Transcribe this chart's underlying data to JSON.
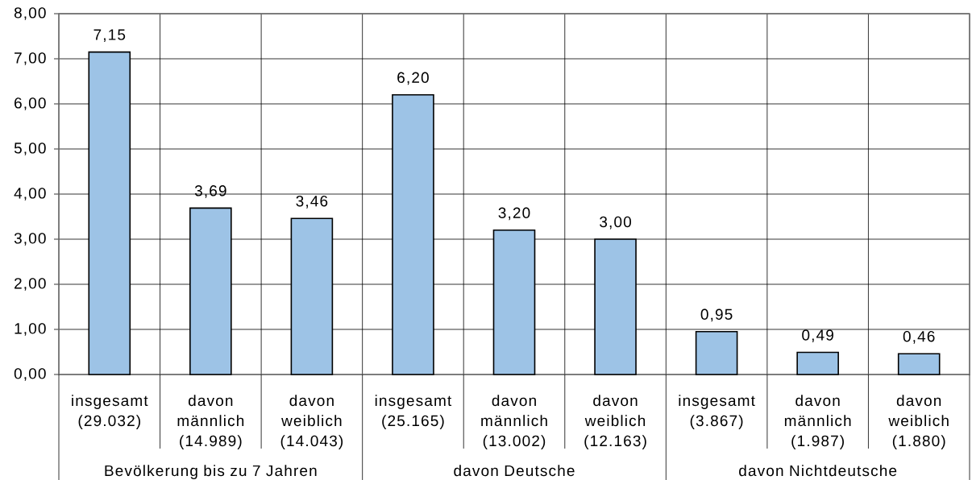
{
  "chart_data": {
    "type": "bar",
    "categories": [
      "insgesamt (29.032)",
      "davon männlich (14.989)",
      "davon weiblich (14.043)",
      "insgesamt (25.165)",
      "davon männlich (13.002)",
      "davon weiblich (12.163)",
      "insgesamt (3.867)",
      "davon männlich (1.987)",
      "davon weiblich (1.880)"
    ],
    "values": [
      7.15,
      3.69,
      3.46,
      6.2,
      3.2,
      3.0,
      0.95,
      0.49,
      0.46
    ],
    "value_labels": [
      "7,15",
      "3,69",
      "3,46",
      "6,20",
      "3,20",
      "3,00",
      "0,95",
      "0,49",
      "0,46"
    ],
    "color": "#9dc3e6",
    "ylim": [
      0,
      8
    ],
    "yticks": [
      {
        "value": 0,
        "label": "0,00"
      },
      {
        "value": 1,
        "label": "1,00"
      },
      {
        "value": 2,
        "label": "2,00"
      },
      {
        "value": 3,
        "label": "3,00"
      },
      {
        "value": 4,
        "label": "4,00"
      },
      {
        "value": 5,
        "label": "5,00"
      },
      {
        "value": 6,
        "label": "6,00"
      },
      {
        "value": 7,
        "label": "7,00"
      },
      {
        "value": 8,
        "label": "8,00"
      }
    ],
    "grid": true,
    "annotations": [
      "Bevölkerung bis zu 7 Jahren",
      "davon Deutsche",
      "davon Nichtdeutsche"
    ]
  }
}
